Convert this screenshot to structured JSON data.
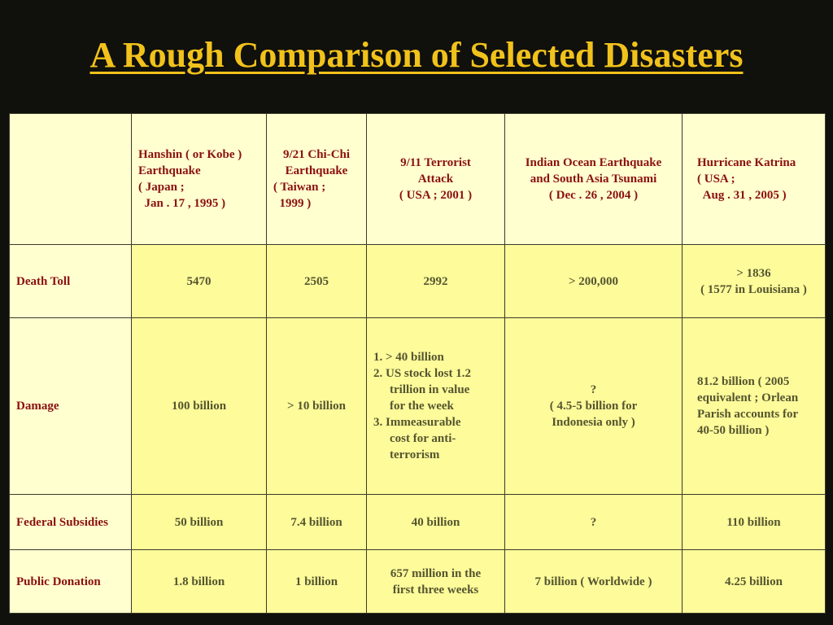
{
  "title": "A Rough Comparison of Selected Disasters",
  "header": {
    "kobe": [
      "Hanshin ( or Kobe )",
      "Earthquake",
      "( Japan ;",
      "  Jan . 17 , 1995 )"
    ],
    "chichi": [
      "9/21 Chi-Chi",
      "Earthquake",
      "( Taiwan ;",
      "  1999 )"
    ],
    "nine_eleven": [
      "9/11 Terrorist",
      "Attack",
      "( USA ; 2001 )"
    ],
    "tsunami": [
      "Indian Ocean Earthquake",
      "and South Asia Tsunami",
      "( Dec . 26 , 2004 )"
    ],
    "katrina": [
      "Hurricane Katrina",
      "( USA ;",
      "  Aug . 31 , 2005 )"
    ]
  },
  "rows": {
    "death_toll": {
      "label": "Death Toll",
      "kobe": "5470",
      "chichi": "2505",
      "nine_eleven": "2992",
      "tsunami": "> 200,000",
      "katrina": [
        "> 1836",
        "( 1577 in Louisiana )"
      ]
    },
    "damage": {
      "label": "Damage",
      "kobe": "100 billion",
      "chichi": "> 10 billion",
      "nine_eleven": [
        "1. > 40 billion",
        "2. US stock lost 1.2",
        "trillion in value",
        "for the week",
        "3. Immeasurable",
        "cost for anti-",
        "terrorism"
      ],
      "tsunami": [
        "?",
        "( 4.5-5 billion for",
        "Indonesia only )"
      ],
      "katrina": [
        "81.2 billion ( 2005",
        "equivalent ; Orlean",
        "Parish accounts for",
        "40-50 billion )"
      ]
    },
    "federal_subsidies": {
      "label": "Federal Subsidies",
      "kobe": "50 billion",
      "chichi": "7.4 billion",
      "nine_eleven": "40 billion",
      "tsunami": "?",
      "katrina": "110 billion"
    },
    "public_donation": {
      "label": "Public Donation",
      "kobe": "1.8 billion",
      "chichi": "1 billion",
      "nine_eleven": [
        "657 million in the",
        "first three weeks"
      ],
      "tsunami": "7 billion ( Worldwide )",
      "katrina": "4.25 billion"
    }
  }
}
